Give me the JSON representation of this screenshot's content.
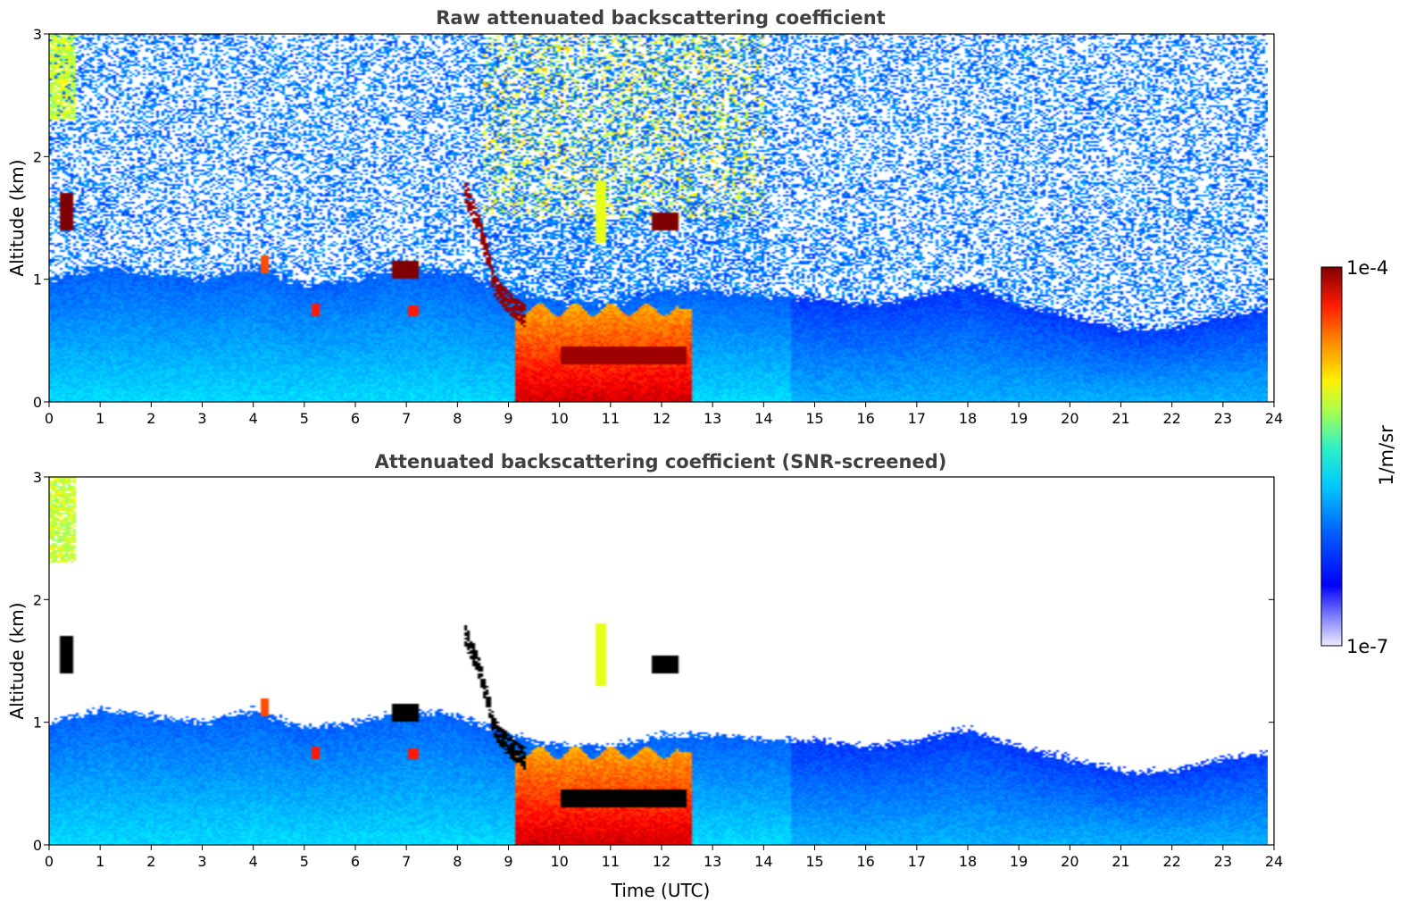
{
  "chart_data": [
    {
      "type": "heatmap",
      "title": "Raw attenuated backscattering coefficient",
      "xlabel": "",
      "ylabel": "Altitude (km)",
      "xlim": [
        0,
        24
      ],
      "ylim": [
        0,
        3
      ],
      "xticks": [
        "0",
        "1",
        "2",
        "3",
        "4",
        "5",
        "6",
        "7",
        "8",
        "9",
        "10",
        "11",
        "12",
        "13",
        "14",
        "15",
        "16",
        "17",
        "18",
        "19",
        "20",
        "21",
        "22",
        "23",
        "24"
      ],
      "yticks": [
        "0",
        "1",
        "2",
        "3"
      ],
      "screened": false
    },
    {
      "type": "heatmap",
      "title": "Attenuated backscattering coefficient (SNR-screened)",
      "xlabel": "Time (UTC)",
      "ylabel": "Altitude (km)",
      "xlim": [
        0,
        24
      ],
      "ylim": [
        0,
        3
      ],
      "xticks": [
        "0",
        "1",
        "2",
        "3",
        "4",
        "5",
        "6",
        "7",
        "8",
        "9",
        "10",
        "11",
        "12",
        "13",
        "14",
        "15",
        "16",
        "17",
        "18",
        "19",
        "20",
        "21",
        "22",
        "23",
        "24"
      ],
      "yticks": [
        "0",
        "1",
        "2",
        "3"
      ],
      "screened": true
    }
  ],
  "colorbar": {
    "label": "1/m/sr",
    "max_label": "1e-4",
    "min_label": "1e-7",
    "colormap": "jet",
    "scale": "log",
    "range": [
      1e-07,
      0.0001
    ]
  },
  "features": {
    "boundary_layer_top_km": [
      [
        0,
        1.0
      ],
      [
        1,
        1.1
      ],
      [
        2,
        1.05
      ],
      [
        3,
        1.0
      ],
      [
        4,
        1.1
      ],
      [
        5,
        0.95
      ],
      [
        6,
        1.0
      ],
      [
        7,
        1.1
      ],
      [
        8,
        1.05
      ],
      [
        9,
        0.9
      ],
      [
        10,
        0.8
      ],
      [
        11,
        0.8
      ],
      [
        12,
        0.9
      ],
      [
        13,
        0.9
      ],
      [
        14,
        0.85
      ],
      [
        15,
        0.85
      ],
      [
        16,
        0.8
      ],
      [
        17,
        0.85
      ],
      [
        18,
        0.95
      ],
      [
        19,
        0.8
      ],
      [
        20,
        0.7
      ],
      [
        21,
        0.6
      ],
      [
        22,
        0.6
      ],
      [
        23,
        0.7
      ],
      [
        23.8,
        0.75
      ]
    ],
    "fog_event_hours": [
      9.1,
      12.6
    ],
    "fog_top_km": 0.75,
    "elevated_layers": [
      {
        "t0": 0.2,
        "t1": 0.45,
        "h0": 1.4,
        "h1": 1.7,
        "level": 1.0
      },
      {
        "t0": 6.7,
        "t1": 7.2,
        "h0": 1.0,
        "h1": 1.15,
        "level": 1.0
      },
      {
        "t0": 5.1,
        "t1": 5.3,
        "h0": 0.7,
        "h1": 0.8,
        "level": 0.85
      },
      {
        "t0": 7.0,
        "t1": 7.2,
        "h0": 0.7,
        "h1": 0.78,
        "level": 0.85
      },
      {
        "t0": 11.8,
        "t1": 12.3,
        "h0": 1.4,
        "h1": 1.55,
        "level": 1.0
      },
      {
        "t0": 10.7,
        "t1": 10.9,
        "h0": 1.3,
        "h1": 1.8,
        "level": 0.6
      },
      {
        "t0": 4.1,
        "t1": 4.3,
        "h0": 1.05,
        "h1": 1.2,
        "level": 0.8
      }
    ],
    "descending_layer": [
      [
        8.1,
        1.75
      ],
      [
        8.4,
        1.45
      ],
      [
        8.6,
        1.15
      ],
      [
        8.7,
        0.95
      ],
      [
        9.0,
        0.8
      ],
      [
        9.3,
        0.7
      ]
    ],
    "near_ground_plume": {
      "t0": 0.0,
      "t1": 0.5,
      "h0": 2.3,
      "h1": 3.0
    }
  }
}
